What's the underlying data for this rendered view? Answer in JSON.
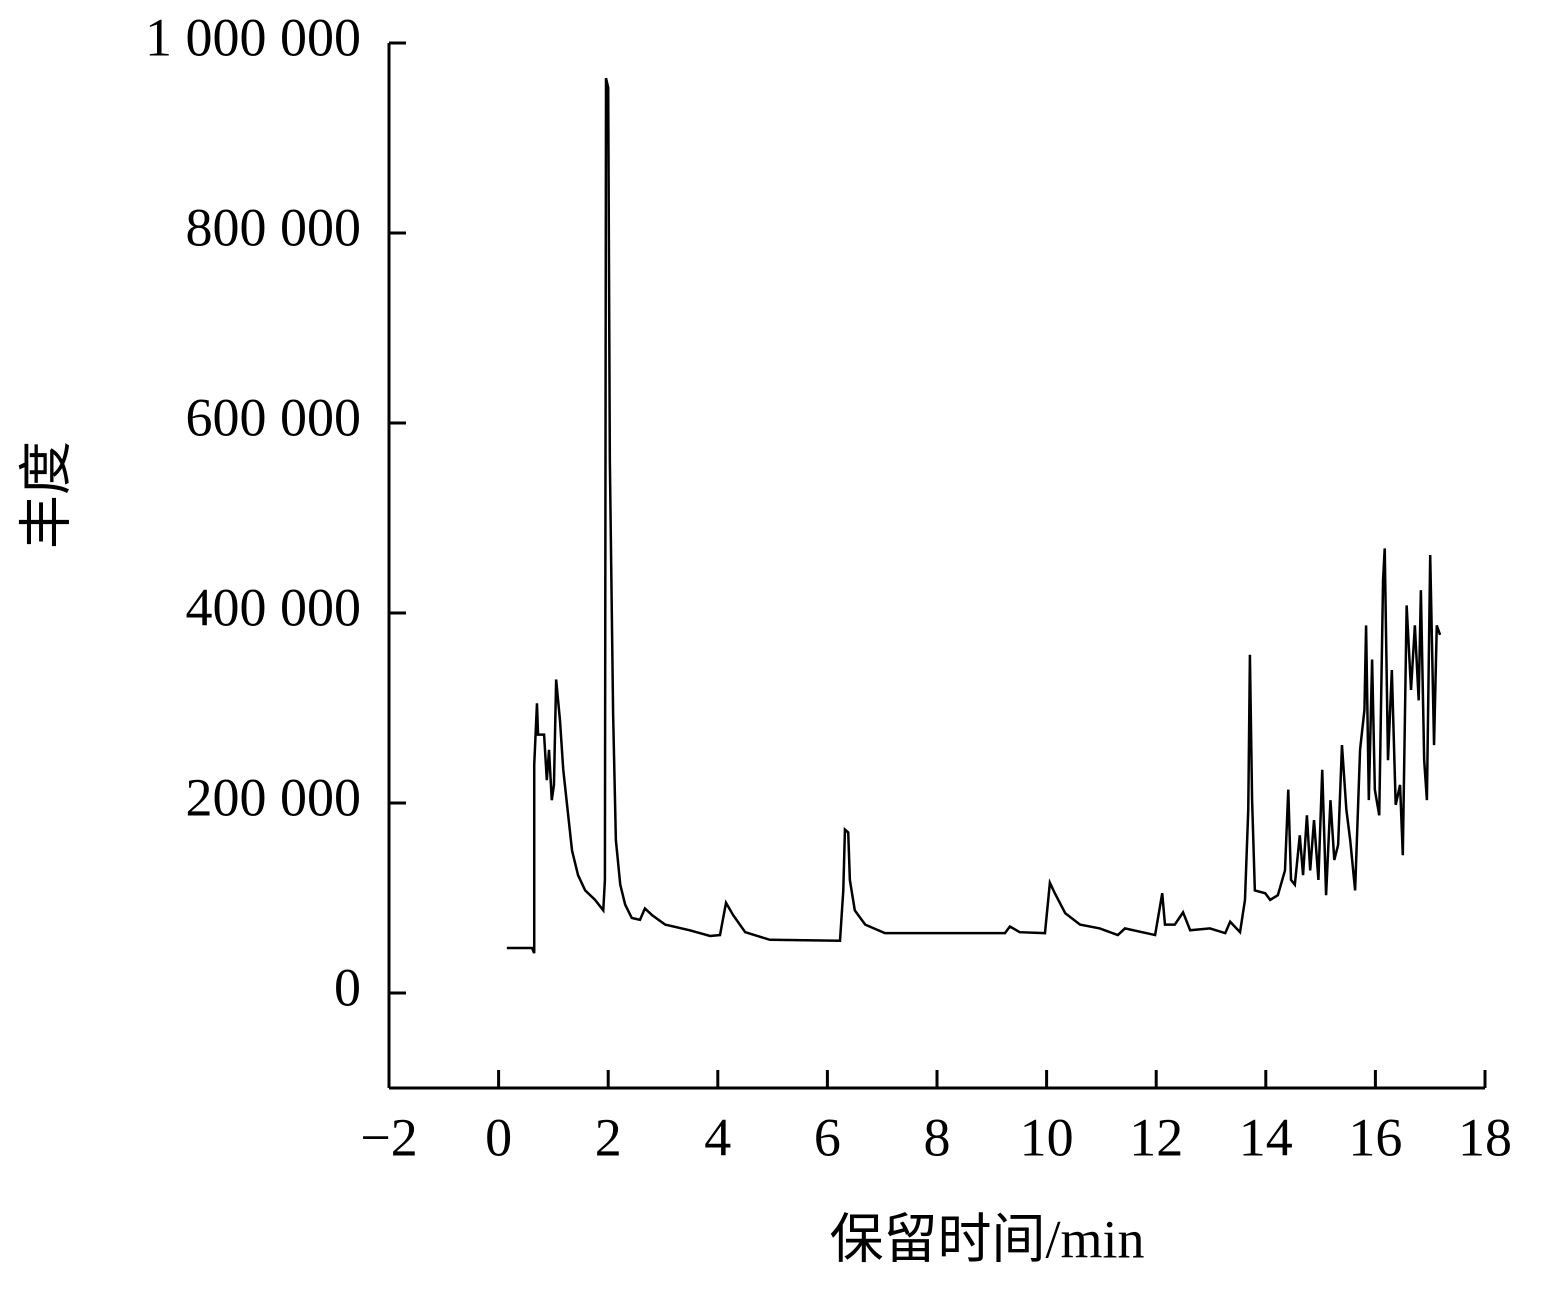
{
  "chart_data": {
    "type": "line",
    "x_label": "保留时间/min",
    "y_label": "丰度",
    "color": "#000000",
    "xlim": [
      -2,
      18
    ],
    "ylim": [
      -100000,
      1000000
    ],
    "xticks": [
      {
        "value": -2,
        "label": "−2"
      },
      0,
      2,
      4,
      6,
      8,
      10,
      12,
      14,
      16,
      18
    ],
    "yticks": [
      0,
      {
        "value": 200000,
        "label": "200 000"
      },
      {
        "value": 400000,
        "label": "400 000"
      },
      {
        "value": 600000,
        "label": "600 000"
      },
      {
        "value": 800000,
        "label": "800 000"
      },
      {
        "value": 1000000,
        "label": "1 000 000"
      }
    ],
    "x": [
      0.15,
      0.61,
      0.65,
      0.65,
      0.7,
      0.72,
      0.83,
      0.88,
      0.92,
      0.97,
      1.01,
      1.05,
      1.12,
      1.18,
      1.27,
      1.34,
      1.45,
      1.58,
      1.76,
      1.91,
      1.94,
      1.96,
      2.0,
      2.03,
      2.09,
      2.14,
      2.22,
      2.31,
      2.43,
      2.58,
      2.67,
      2.8,
      3.04,
      3.49,
      3.86,
      4.04,
      4.15,
      4.28,
      4.5,
      4.95,
      6.23,
      6.29,
      6.32,
      6.38,
      6.41,
      6.5,
      6.69,
      7.05,
      9.24,
      9.33,
      9.51,
      9.97,
      10.06,
      10.15,
      10.34,
      10.61,
      10.97,
      11.3,
      11.43,
      11.98,
      12.11,
      12.16,
      12.34,
      12.49,
      12.62,
      12.98,
      13.26,
      13.35,
      13.53,
      13.62,
      13.68,
      13.71,
      13.75,
      13.8,
      13.99,
      14.08,
      14.22,
      14.35,
      14.41,
      14.46,
      14.53,
      14.62,
      14.68,
      14.75,
      14.81,
      14.88,
      14.96,
      15.03,
      15.1,
      15.18,
      15.25,
      15.32,
      15.39,
      15.47,
      15.54,
      15.63,
      15.72,
      15.8,
      15.83,
      15.88,
      15.94,
      15.99,
      16.07,
      16.14,
      16.17,
      16.23,
      16.3,
      16.37,
      16.45,
      16.5,
      16.57,
      16.65,
      16.72,
      16.79,
      16.83,
      16.89,
      16.94,
      17.0,
      17.07,
      17.12,
      17.18
    ],
    "values": [
      47400,
      47400,
      42000,
      240000,
      305000,
      272000,
      272000,
      224000,
      256000,
      203000,
      219000,
      330000,
      287000,
      235000,
      187000,
      150000,
      124000,
      108000,
      98000,
      87000,
      119000,
      963000,
      953000,
      561000,
      293000,
      161000,
      114000,
      93000,
      79000,
      77000,
      89000,
      82000,
      72000,
      66000,
      60000,
      61000,
      95000,
      82000,
      64000,
      56000,
      55000,
      108000,
      172000,
      169000,
      119000,
      87000,
      72000,
      63000,
      63000,
      70000,
      64000,
      63000,
      116000,
      105000,
      84000,
      72000,
      68000,
      61000,
      68000,
      61000,
      105000,
      72000,
      72000,
      85000,
      66000,
      68000,
      63000,
      75000,
      64000,
      98000,
      193000,
      356000,
      203000,
      108000,
      105000,
      98000,
      103000,
      129000,
      214000,
      119000,
      114000,
      166000,
      124000,
      187000,
      129000,
      182000,
      119000,
      235000,
      103000,
      203000,
      140000,
      156000,
      261000,
      193000,
      161000,
      108000,
      256000,
      298000,
      387000,
      203000,
      351000,
      214000,
      187000,
      435000,
      468000,
      245000,
      340000,
      198000,
      219000,
      145000,
      408000,
      319000,
      387000,
      308000,
      424000,
      245000,
      203000,
      461000,
      261000,
      387000,
      377000
    ]
  }
}
